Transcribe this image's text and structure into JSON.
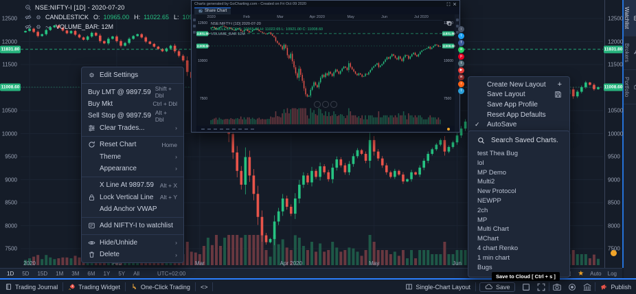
{
  "header_legend": {
    "symbol": "NSE:NIFTY-I [1D] - 2020-07-20",
    "study": "CANDLESTICK",
    "o_label": "O:",
    "o": "10965.00",
    "h_label": "H:",
    "h": "11022.65",
    "l_label": "L:",
    "l": "10921.00",
    "c_label": "C:",
    "c": "11008.60",
    "volume": "VOLUME_BAR: 12M"
  },
  "chart_data": {
    "type": "candlestick",
    "symbol": "NSE:NIFTY-I",
    "interval": "1D",
    "date": "2020-07-20",
    "ohlc": {
      "open": 10965.0,
      "high": 11022.65,
      "low": 10921.0,
      "close": 11008.6
    },
    "volume": "12M",
    "price_range": [
      7500,
      12500
    ],
    "price_ticks": [
      12500,
      12000,
      11500,
      11000,
      10500,
      10000,
      9500,
      9000,
      8500,
      8000,
      7500
    ],
    "levels": [
      {
        "value": 11831.8,
        "label": "11831.80",
        "style": "dashed"
      },
      {
        "value": 11008.6,
        "label": "11008.60",
        "style": "last"
      }
    ],
    "time_labels": [
      {
        "label": "2020",
        "i": 1
      },
      {
        "label": "Feb",
        "i": 22
      },
      {
        "label": "Mar",
        "i": 42
      },
      {
        "label": "Apr 2020",
        "i": 64
      },
      {
        "label": "May",
        "i": 84
      },
      {
        "label": "Jun",
        "i": 104
      }
    ],
    "closes": [
      12230,
      12280,
      12210,
      12120,
      12160,
      12250,
      12310,
      12350,
      12300,
      12240,
      12180,
      12230,
      12150,
      12090,
      12040,
      12110,
      12190,
      12130,
      12010,
      11960,
      12060,
      12110,
      12010,
      11910,
      11970,
      12060,
      12120,
      12160,
      12090,
      12000,
      11950,
      11890,
      11840,
      11790,
      11850,
      11910,
      11790,
      11690,
      11590,
      11340,
      11210,
      11090,
      10990,
      10790,
      11090,
      10880,
      10390,
      10190,
      10490,
      9990,
      9590,
      9190,
      8890,
      9490,
      9090,
      8690,
      8190,
      7790,
      7640,
      7710,
      8090,
      8310,
      8590,
      8410,
      8260,
      8590,
      8890,
      9090,
      8940,
      9190,
      9060,
      9290,
      9160,
      9010,
      9260,
      9440,
      9310,
      9160,
      9340,
      9510,
      9640,
      9560,
      9410,
      9860,
      9610,
      9460,
      9310,
      9160,
      9060,
      9190,
      9110,
      8960,
      9010,
      9160,
      9110,
      9260,
      9410,
      9560,
      9660,
      9760,
      9860,
      9610,
      9710,
      9810,
      9960,
      10110,
      10260,
      10160,
      10310,
      10460,
      10360,
      10210,
      10110,
      10310,
      10160,
      10010,
      10260,
      10410,
      10360,
      10160,
      10310,
      10460,
      10560,
      10410,
      10310,
      10460,
      10610,
      10710,
      10760,
      10810,
      10860,
      10960,
      10810,
      10910,
      11010,
      11110,
      11060,
      10965,
      11008.6
    ],
    "colors": {
      "up": "#26c281",
      "down": "#e8544a",
      "vol_up": "#1f5c49",
      "vol_down": "#6e3a41",
      "tag": "#27b47e"
    }
  },
  "context_menu": {
    "items": [
      {
        "group": 0,
        "icon": "gear",
        "label": "Edit Settings",
        "shortcut": ""
      },
      {
        "group": 1,
        "label": "Buy LMT @ 9897.59",
        "shortcut": "Shift + Dbl"
      },
      {
        "group": 1,
        "label": "Buy Mkt",
        "shortcut": "Ctrl + Dbl"
      },
      {
        "group": 1,
        "label": "Sell Stop @ 9897.59",
        "shortcut": "Alt + Dbl"
      },
      {
        "group": 1,
        "icon": "sliders",
        "label": "Clear Trades...",
        "shortcut": "›"
      },
      {
        "group": 2,
        "icon": "reset",
        "label": "Reset Chart",
        "shortcut": "Home"
      },
      {
        "group": 2,
        "label": "Theme",
        "shortcut": "›"
      },
      {
        "group": 2,
        "label": "Appearance",
        "shortcut": "›"
      },
      {
        "group": 3,
        "label": "X Line At 9897.59",
        "shortcut": "Alt + X"
      },
      {
        "group": 3,
        "icon": "lock",
        "label": "Lock Vertical Line",
        "shortcut": "Alt + Y"
      },
      {
        "group": 3,
        "label": "Add Anchor VWAP",
        "shortcut": ""
      },
      {
        "group": 4,
        "icon": "watchlist",
        "label": "Add NIFTY-I to watchlist",
        "shortcut": ""
      },
      {
        "group": 5,
        "icon": "eye",
        "label": "Hide/Unhide",
        "shortcut": "›"
      },
      {
        "group": 5,
        "icon": "trash",
        "label": "Delete",
        "shortcut": "›"
      }
    ]
  },
  "layout_menu": {
    "items": [
      {
        "label": "Create New Layout",
        "right_icon": "plus"
      },
      {
        "label": "Save Layout",
        "right_icon": "floppy"
      },
      {
        "label": "Save App Profile"
      },
      {
        "label": "Reset App Defaults"
      },
      {
        "label": "AutoSave",
        "checked": true
      }
    ]
  },
  "saved_charts": {
    "search_label": "Search Saved Charts.",
    "items": [
      "test Thea Bug",
      "lol",
      "MP Demo",
      "Multi2",
      "New Protocol",
      "NEWPP",
      "2ch",
      "MP",
      "Multi Chart",
      "MChart",
      "4 chart Renko",
      "1 min chart",
      "Bugs"
    ]
  },
  "share_buttons": [
    {
      "name": "download",
      "color": "#4a5568",
      "glyph": "↓"
    },
    {
      "name": "twitter",
      "color": "#1da1f2",
      "glyph": "t"
    },
    {
      "name": "facebook",
      "color": "#3b5998",
      "glyph": "f"
    },
    {
      "name": "whatsapp",
      "color": "#25d366",
      "glyph": "w"
    },
    {
      "name": "pinterest",
      "color": "#e60023",
      "glyph": "p"
    },
    {
      "name": "tumblr",
      "color": "#546e7a",
      "glyph": "t"
    },
    {
      "name": "youtube",
      "color": "#e53935",
      "glyph": "▶"
    },
    {
      "name": "weibo",
      "color": "#8b2a2a",
      "glyph": "w"
    },
    {
      "name": "reddit",
      "color": "#ff6314",
      "glyph": "r"
    },
    {
      "name": "telegram",
      "color": "#2b9fd8",
      "glyph": "t"
    }
  ],
  "popup": {
    "title": "Charts generated by GoCharting.com - Created on Fri Oct 09 2020",
    "tab": "Share Chart",
    "legend_symbol": "NSE:NIFTY-I [1D] 2020-07-20",
    "legend_study": "CANDLESTICK O: 10965.00 H: 11022.65 L: 10921.00 C: 11008.60",
    "legend_volume": "VOLUME_BAR 12M",
    "price_ticks": [
      12500,
      10000,
      7500
    ],
    "time_labels": [
      {
        "label": "2020",
        "i": 1
      },
      {
        "label": "Feb",
        "i": 22
      },
      {
        "label": "Mar",
        "i": 42
      },
      {
        "label": "Apr 2020",
        "i": 64
      },
      {
        "label": "May",
        "i": 84
      },
      {
        "label": "Jun",
        "i": 104
      },
      {
        "label": "Jul 2020",
        "i": 126
      }
    ]
  },
  "sidebar": {
    "tabs": [
      {
        "label": "Watchlist",
        "icon": "watchlist",
        "active": true
      },
      {
        "label": "Brokers",
        "icon": "wrench",
        "active": false
      },
      {
        "label": "Portfolio",
        "icon": "briefcase",
        "active": false
      }
    ]
  },
  "timeframe_bar": {
    "buttons": [
      "1D",
      "5D",
      "15D",
      "1M",
      "3M",
      "6M",
      "1Y",
      "5Y",
      "All"
    ],
    "timezone": "UTC+02:00",
    "auto_label": "Auto",
    "log_label": "Log"
  },
  "bottom_bar": {
    "trading_journal": "Trading Journal",
    "trading_widget": "Trading Widget",
    "one_click": "One-Click Trading",
    "code": "<>",
    "single_chart": "Single-Chart Layout",
    "save": "Save",
    "publish": "Publish"
  },
  "tooltip": {
    "text": "Save to Cloud [ Ctrl + s ]"
  }
}
